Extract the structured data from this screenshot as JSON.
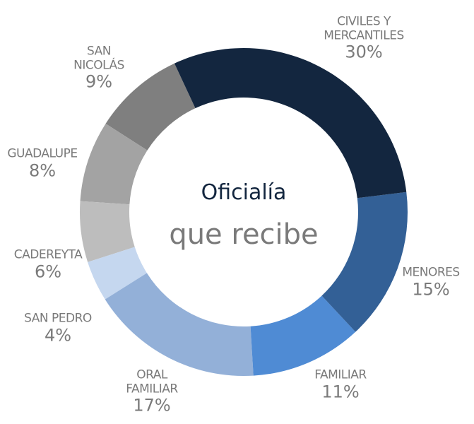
{
  "chart_data": {
    "type": "donut",
    "title": "Oficialía",
    "subtitle": "que recibe",
    "categories": [
      "CIVILES Y MERCANTILES",
      "MENORES",
      "FAMILIAR",
      "ORAL FAMILIAR",
      "SAN PEDRO",
      "CADEREYTA",
      "GUADALUPE",
      "SAN NICOLÁS"
    ],
    "values": [
      30,
      15,
      11,
      17,
      4,
      6,
      8,
      9
    ],
    "value_labels": [
      "30%",
      "15%",
      "11%",
      "17%",
      "4%",
      "6%",
      "8%",
      "9%"
    ],
    "colors": [
      "#13263f",
      "#336096",
      "#4f8bd4",
      "#93b0d8",
      "#c5d7ef",
      "#bdbdbd",
      "#a3a3a3",
      "#7f7f7f"
    ]
  }
}
